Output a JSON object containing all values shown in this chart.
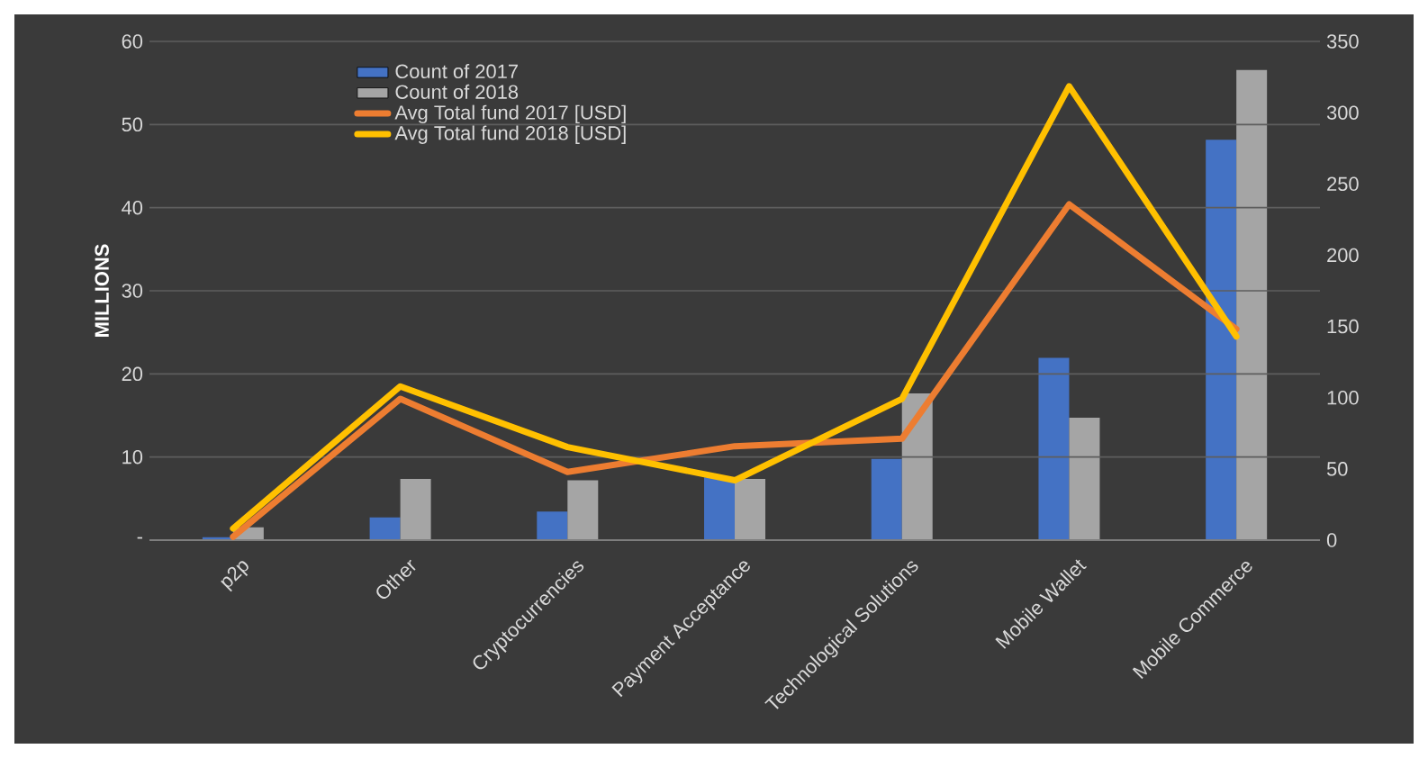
{
  "chart_data": {
    "type": "bar",
    "ylabel": "MILLIONS",
    "categories": [
      "p2p",
      "Other",
      "Cryptocurrencies",
      "Payment Acceptance",
      "Technological Solutions",
      "Mobile Wallet",
      "Mobile Commerce"
    ],
    "series": [
      {
        "name": "Count of 2017",
        "axis": "y2",
        "color": "#4472c4",
        "values": [
          2,
          16,
          20,
          44,
          57,
          128,
          281
        ]
      },
      {
        "name": "Count of 2018",
        "axis": "y2",
        "color": "#a5a5a5",
        "values": [
          9,
          43,
          42,
          43,
          103,
          86,
          330
        ]
      },
      {
        "name": "Avg Total fund 2017 [USD]",
        "type": "line",
        "axis": "y",
        "color": "#ed7d31",
        "values": [
          0.4,
          17,
          8.2,
          11.3,
          12.2,
          40.4,
          25.4
        ]
      },
      {
        "name": "Avg Total fund 2018 [USD]",
        "type": "line",
        "axis": "y",
        "color": "#ffc000",
        "values": [
          1.4,
          18.5,
          11.2,
          7.2,
          17,
          54.6,
          24.5
        ]
      }
    ],
    "ylim": [
      0,
      60
    ],
    "yticks": [
      {
        "value": 0,
        "label": "-"
      },
      10,
      20,
      30,
      40,
      50,
      60
    ],
    "y2lim": [
      0,
      350
    ],
    "y2ticks": [
      0,
      50,
      100,
      150,
      200,
      250,
      300,
      350
    ],
    "grid": "y",
    "legend": "top left",
    "marker": "none",
    "line_style": "solid"
  }
}
